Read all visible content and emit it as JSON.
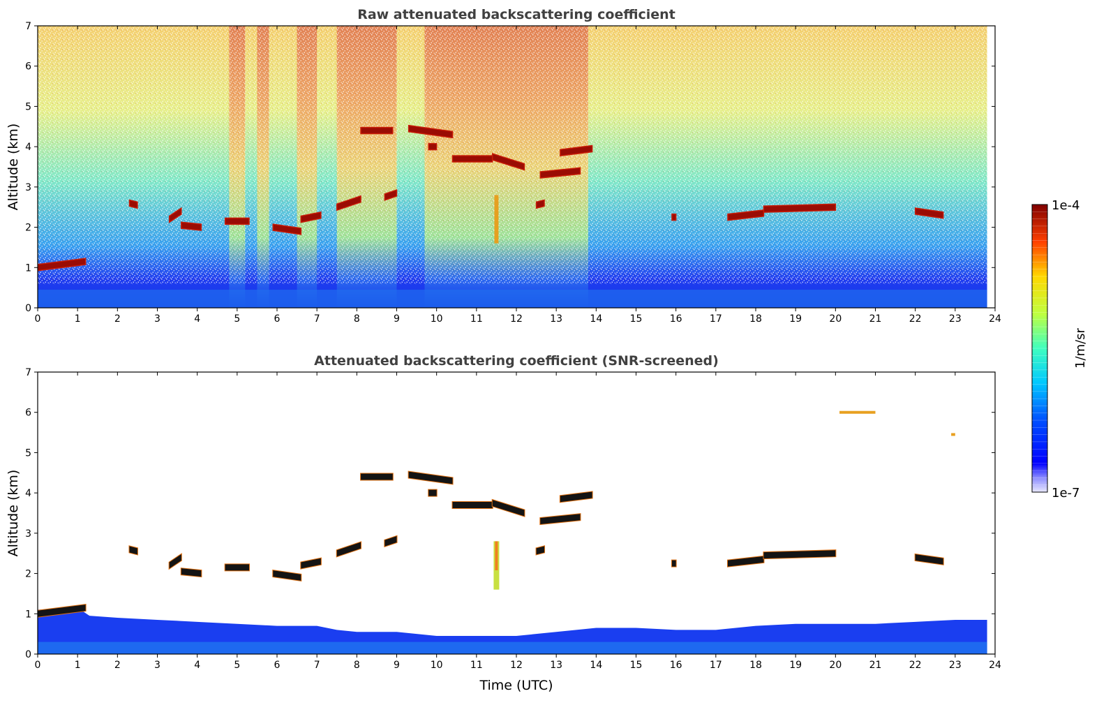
{
  "chart_data": [
    {
      "type": "heatmap",
      "title": "Raw attenuated backscattering coefficient",
      "xlabel": "",
      "ylabel": "Altitude (km)",
      "xlim": [
        0,
        24
      ],
      "ylim": [
        0,
        7
      ],
      "x_ticks": [
        0,
        1,
        2,
        3,
        4,
        5,
        6,
        7,
        8,
        9,
        10,
        11,
        12,
        13,
        14,
        15,
        16,
        17,
        18,
        19,
        20,
        21,
        22,
        23,
        24
      ],
      "y_ticks": [
        0,
        1,
        2,
        3,
        4,
        5,
        6,
        7
      ],
      "data_end_time": 23.8,
      "high_background_periods": [
        [
          4.8,
          5.2
        ],
        [
          5.5,
          5.8
        ],
        [
          6.5,
          7.0
        ],
        [
          7.5,
          9.0
        ],
        [
          9.7,
          13.8
        ]
      ],
      "cloud_layers": [
        {
          "t_start": 0.0,
          "t_end": 1.2,
          "alt_start": 1.0,
          "alt_end": 1.15
        },
        {
          "t_start": 2.3,
          "t_end": 2.5,
          "alt_start": 2.6,
          "alt_end": 2.55
        },
        {
          "t_start": 3.3,
          "t_end": 3.6,
          "alt_start": 2.2,
          "alt_end": 2.4
        },
        {
          "t_start": 3.6,
          "t_end": 4.1,
          "alt_start": 2.05,
          "alt_end": 2.0
        },
        {
          "t_start": 4.7,
          "t_end": 5.3,
          "alt_start": 2.15,
          "alt_end": 2.15
        },
        {
          "t_start": 5.9,
          "t_end": 6.6,
          "alt_start": 2.0,
          "alt_end": 1.9
        },
        {
          "t_start": 6.6,
          "t_end": 7.1,
          "alt_start": 2.2,
          "alt_end": 2.3
        },
        {
          "t_start": 7.5,
          "t_end": 8.1,
          "alt_start": 2.5,
          "alt_end": 2.7
        },
        {
          "t_start": 8.7,
          "t_end": 9.0,
          "alt_start": 2.75,
          "alt_end": 2.85
        },
        {
          "t_start": 8.1,
          "t_end": 8.9,
          "alt_start": 4.4,
          "alt_end": 4.4
        },
        {
          "t_start": 9.3,
          "t_end": 10.4,
          "alt_start": 4.45,
          "alt_end": 4.3
        },
        {
          "t_start": 9.8,
          "t_end": 10.0,
          "alt_start": 4.0,
          "alt_end": 4.0
        },
        {
          "t_start": 10.4,
          "t_end": 11.4,
          "alt_start": 3.7,
          "alt_end": 3.7
        },
        {
          "t_start": 11.4,
          "t_end": 12.2,
          "alt_start": 3.75,
          "alt_end": 3.5
        },
        {
          "t_start": 12.5,
          "t_end": 12.7,
          "alt_start": 2.55,
          "alt_end": 2.6
        },
        {
          "t_start": 12.6,
          "t_end": 13.6,
          "alt_start": 3.3,
          "alt_end": 3.4
        },
        {
          "t_start": 13.1,
          "t_end": 13.9,
          "alt_start": 3.85,
          "alt_end": 3.95
        },
        {
          "t_start": 15.9,
          "t_end": 16.0,
          "alt_start": 2.25,
          "alt_end": 2.25
        },
        {
          "t_start": 17.3,
          "t_end": 18.2,
          "alt_start": 2.25,
          "alt_end": 2.35
        },
        {
          "t_start": 18.2,
          "t_end": 20.0,
          "alt_start": 2.45,
          "alt_end": 2.5
        },
        {
          "t_start": 22.0,
          "t_end": 22.7,
          "alt_start": 2.4,
          "alt_end": 2.3
        }
      ],
      "precipitation_streak": {
        "t": 11.5,
        "alt_top": 2.8,
        "alt_bottom": 1.6
      }
    },
    {
      "type": "heatmap",
      "title": "Attenuated backscattering coefficient (SNR-screened)",
      "xlabel": "Time (UTC)",
      "ylabel": "Altitude (km)",
      "xlim": [
        0,
        24
      ],
      "ylim": [
        0,
        7
      ],
      "x_ticks": [
        0,
        1,
        2,
        3,
        4,
        5,
        6,
        7,
        8,
        9,
        10,
        11,
        12,
        13,
        14,
        15,
        16,
        17,
        18,
        19,
        20,
        21,
        22,
        23,
        24
      ],
      "y_ticks": [
        0,
        1,
        2,
        3,
        4,
        5,
        6,
        7
      ],
      "boundary_layer_top": [
        [
          0,
          1.1
        ],
        [
          1,
          1.15
        ],
        [
          1.3,
          0.95
        ],
        [
          2,
          0.9
        ],
        [
          3,
          0.85
        ],
        [
          4,
          0.8
        ],
        [
          5,
          0.75
        ],
        [
          6,
          0.7
        ],
        [
          7,
          0.7
        ],
        [
          7.5,
          0.6
        ],
        [
          8,
          0.55
        ],
        [
          9,
          0.55
        ],
        [
          10,
          0.45
        ],
        [
          11,
          0.45
        ],
        [
          12,
          0.45
        ],
        [
          13,
          0.55
        ],
        [
          14,
          0.65
        ],
        [
          15,
          0.65
        ],
        [
          16,
          0.6
        ],
        [
          17,
          0.6
        ],
        [
          18,
          0.7
        ],
        [
          19,
          0.75
        ],
        [
          20,
          0.75
        ],
        [
          21,
          0.75
        ],
        [
          22,
          0.8
        ],
        [
          23,
          0.85
        ],
        [
          23.8,
          0.85
        ]
      ],
      "high_cloud_fragments": [
        {
          "t_start": 20.1,
          "t_end": 21.0,
          "alt": 6.0
        },
        {
          "t_start": 22.9,
          "t_end": 23.0,
          "alt": 5.45
        }
      ]
    }
  ],
  "colorbar": {
    "max_label": "1e-4",
    "min_label": "1e-7",
    "unit_label": "1/m/sr",
    "colormap": "jet"
  }
}
